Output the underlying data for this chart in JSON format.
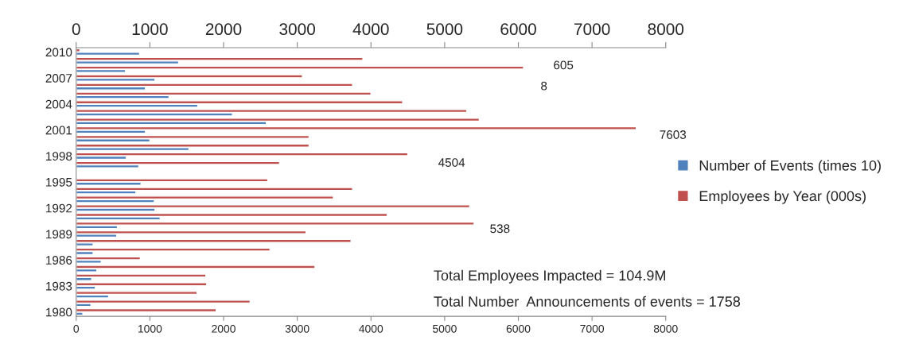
{
  "chart_data": {
    "type": "bar",
    "orientation": "horizontal",
    "categories": [
      "2010",
      null,
      null,
      "2007",
      null,
      null,
      "2004",
      null,
      null,
      "2001",
      null,
      null,
      "1998",
      null,
      null,
      "1995",
      null,
      null,
      "1992",
      null,
      null,
      "1989",
      null,
      null,
      "1986",
      null,
      null,
      "1983",
      null,
      null,
      "1980"
    ],
    "series": [
      {
        "name": "Number of Events (times 10)",
        "color": "#4f81bd",
        "values": [
          860,
          1390,
          670,
          1070,
          940,
          1260,
          1650,
          2120,
          2580,
          940,
          1000,
          1530,
          680,
          850,
          null,
          880,
          810,
          1060,
          1070,
          1140,
          560,
          550,
          230,
          230,
          340,
          280,
          210,
          260,
          440,
          200,
          90
        ]
      },
      {
        "name": "Employees by Year (000s)",
        "color": "#c0504d",
        "values": [
          50,
          3890,
          6070,
          3070,
          3750,
          4000,
          4430,
          5300,
          5470,
          7600,
          3160,
          3160,
          4500,
          2760,
          null,
          2600,
          3750,
          3490,
          5340,
          4220,
          5400,
          3120,
          3730,
          2630,
          870,
          3240,
          1760,
          1770,
          1640,
          2360,
          1900
        ]
      }
    ],
    "xlim": [
      0,
      8000
    ],
    "xticks": [
      0,
      1000,
      2000,
      3000,
      4000,
      5000,
      6000,
      7000,
      8000
    ],
    "x2lim": [
      0,
      8000
    ],
    "x2ticks": [
      0,
      1000,
      2000,
      3000,
      4000,
      5000,
      6000,
      7000,
      8000
    ],
    "legend": "right",
    "grid": false,
    "annotations": [
      "605",
      "8",
      "7603",
      "4504",
      "538",
      "Total Employees Impacted = 104.9M",
      "Total Number  Announcements of events = 1758"
    ]
  }
}
